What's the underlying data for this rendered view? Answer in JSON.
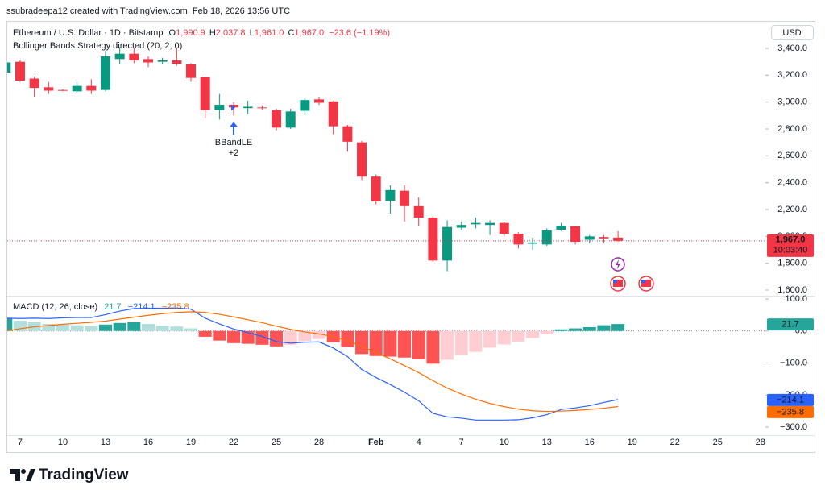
{
  "header": {
    "author_line": "ssubradeepa12 created with TradingView.com, Feb 18, 2026 13:56 UTC",
    "currency": "USD",
    "brand": "TradingView"
  },
  "chart_data": [
    {
      "type": "candlestick",
      "title": "Ethereum / U.S. Dollar · 1D · Bitstamp",
      "ohlc_legend": [
        {
          "key": "O",
          "value": "1,990.9"
        },
        {
          "key": "H",
          "value": "2,037.8"
        },
        {
          "key": "L",
          "value": "1,961.0"
        },
        {
          "key": "C",
          "value": "1,967.0"
        }
      ],
      "change": "−23.6 (−1.19%)",
      "indicator": "Bollinger Bands Strategy directed (20, 2, 0)",
      "categories": [
        null,
        "7",
        null,
        null,
        "10",
        null,
        null,
        "13",
        null,
        null,
        "16",
        null,
        null,
        "19",
        null,
        null,
        "22",
        null,
        null,
        "25",
        null,
        null,
        "28",
        null,
        null,
        null,
        "Feb",
        null,
        null,
        "4",
        null,
        null,
        "7",
        null,
        null,
        "10",
        null,
        null,
        "13",
        null,
        null,
        "16",
        null,
        null,
        "19",
        null,
        null,
        "22",
        null,
        null,
        "25",
        null,
        null,
        "28"
      ],
      "open": [
        3220,
        3300,
        3175,
        3110,
        3090,
        3080,
        3120,
        3090,
        3320,
        3360,
        3320,
        3300,
        3310,
        3280,
        3185,
        2940,
        2980,
        2955,
        2960,
        2940,
        2810,
        2935,
        3020,
        3005,
        2820,
        2700,
        2445,
        2265,
        2340,
        2225,
        2140,
        1820,
        2065,
        2090,
        2085,
        2100,
        2020,
        1945,
        1940,
        2050,
        2075,
        1975,
        1995,
        1990.9,
        null,
        null,
        null,
        null,
        null,
        null,
        null,
        null,
        null,
        null
      ],
      "high": [
        3310,
        3310,
        3190,
        3150,
        3095,
        3150,
        3170,
        3380,
        3410,
        3400,
        3340,
        3330,
        3400,
        3290,
        3190,
        3060,
        3000,
        3010,
        2975,
        2950,
        2950,
        3030,
        3040,
        3010,
        2830,
        2710,
        2460,
        2380,
        2380,
        2290,
        2150,
        2120,
        2110,
        2140,
        2120,
        2110,
        2030,
        1990,
        2060,
        2100,
        2080,
        2010,
        2010,
        2037.8,
        null,
        null,
        null,
        null,
        null,
        null,
        null,
        null,
        null,
        null
      ],
      "low": [
        3200,
        3150,
        3040,
        3060,
        3080,
        3070,
        3060,
        3080,
        3280,
        3290,
        3260,
        3280,
        3270,
        3150,
        2880,
        2870,
        2900,
        2910,
        2945,
        2790,
        2800,
        2900,
        2980,
        2760,
        2630,
        2420,
        2240,
        2170,
        2110,
        2080,
        1810,
        1740,
        2050,
        2060,
        2010,
        2000,
        1910,
        1900,
        1930,
        2040,
        1940,
        1950,
        1950,
        1961.0,
        null,
        null,
        null,
        null,
        null,
        null,
        null,
        null,
        null,
        null
      ],
      "close": [
        3295,
        3160,
        3105,
        3085,
        3085,
        3120,
        3085,
        3340,
        3360,
        3310,
        3295,
        3310,
        3285,
        3180,
        2940,
        2980,
        2960,
        2965,
        2955,
        2810,
        2930,
        3015,
        2995,
        2820,
        2705,
        2445,
        2260,
        2345,
        2225,
        2140,
        1820,
        2070,
        2085,
        2100,
        2100,
        2020,
        1940,
        1955,
        2045,
        2080,
        1960,
        2000,
        1985,
        1967.0,
        null,
        null,
        null,
        null,
        null,
        null,
        null,
        null,
        null,
        null
      ],
      "up_color": "#089981",
      "down_color": "#f23645",
      "last_label": "1,967.0",
      "countdown": "10:03:40",
      "ylim": [
        1558,
        3580
      ],
      "yticks": [
        {
          "value": 1600,
          "label": "1,600.0"
        },
        {
          "value": 1800,
          "label": "1,800.0"
        },
        {
          "value": 2000,
          "label": "2,000.0"
        },
        {
          "value": 2200,
          "label": "2,200.0"
        },
        {
          "value": 2400,
          "label": "2,400.0"
        },
        {
          "value": 2600,
          "label": "2,600.0"
        },
        {
          "value": 2800,
          "label": "2,800.0"
        },
        {
          "value": 3000,
          "label": "3,000.0"
        },
        {
          "value": 3200,
          "label": "3,200.0"
        },
        {
          "value": 3400,
          "label": "3,400.0"
        }
      ],
      "grid": false,
      "annotations": [
        {
          "text": "BBandLE",
          "subtext": "+2",
          "category_index": 16,
          "color": "#2962ff"
        }
      ]
    },
    {
      "type": "macd",
      "title": "MACD (12, 26, close)",
      "series": [
        {
          "type": "histogram",
          "last_label": "21.7",
          "color": "#26a69a",
          "colors": {
            "grow_above": "#26a69a",
            "fall_above": "#b2dfdb",
            "grow_below": "#ffcdd2",
            "fall_below": "#ff5252"
          },
          "values": [
            40,
            32,
            27,
            22,
            20,
            18,
            15,
            20,
            25,
            27,
            22,
            17,
            14,
            8,
            -18,
            -30,
            -38,
            -40,
            -43,
            -48,
            -43,
            -32,
            -25,
            -35,
            -50,
            -72,
            -78,
            -80,
            -83,
            -88,
            -102,
            -90,
            -75,
            -65,
            -52,
            -42,
            -33,
            -22,
            -10,
            5,
            8,
            12,
            18,
            21.7,
            null,
            null,
            null,
            null,
            null,
            null,
            null,
            null,
            null,
            null
          ]
        },
        {
          "type": "line",
          "last_label": "−214.1",
          "color": "#2962ff",
          "values": [
            40,
            39,
            40,
            39,
            41,
            42,
            42,
            51,
            62,
            70,
            71,
            71,
            72,
            68,
            40,
            22,
            6,
            -5,
            -17,
            -33,
            -38,
            -35,
            -34,
            -53,
            -80,
            -120,
            -145,
            -167,
            -191,
            -218,
            -257,
            -268,
            -272,
            -278,
            -278,
            -278,
            -277,
            -271,
            -261,
            -245,
            -240,
            -233,
            -223,
            -214.1,
            null,
            null,
            null,
            null,
            null,
            null,
            null,
            null,
            null,
            null
          ]
        },
        {
          "type": "line",
          "last_label": "−235.8",
          "color": "#ff6d00",
          "values": [
            0,
            7,
            13,
            17,
            21,
            24,
            27,
            31,
            37,
            43,
            49,
            54,
            58,
            60,
            58,
            52,
            44,
            35,
            26,
            15,
            5,
            -3,
            -9,
            -18,
            -30,
            -48,
            -67,
            -87,
            -108,
            -130,
            -155,
            -178,
            -197,
            -213,
            -226,
            -236,
            -244,
            -249,
            -251,
            -250,
            -248,
            -245,
            -241,
            -235.8,
            null,
            null,
            null,
            null,
            null,
            null,
            null,
            null,
            null,
            null
          ]
        }
      ],
      "ylim": [
        -325,
        110
      ],
      "yticks": [
        {
          "value": 100,
          "label": "100.0"
        },
        {
          "value": 0,
          "label": "0.0"
        },
        {
          "value": -100,
          "label": "−100.0"
        },
        {
          "value": -200,
          "label": "−200.0"
        },
        {
          "value": -300,
          "label": "−300.0"
        }
      ],
      "grid": false
    }
  ]
}
